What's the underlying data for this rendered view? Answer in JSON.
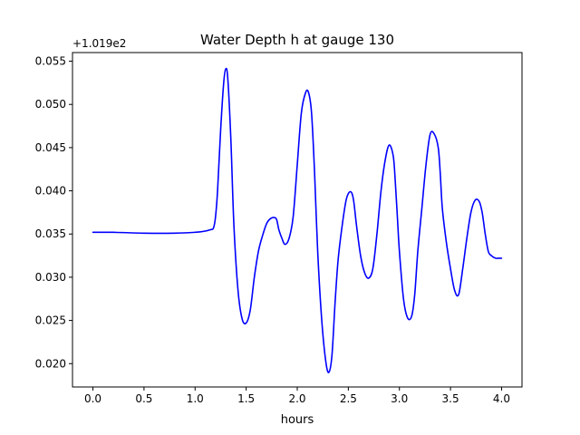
{
  "chart_data": {
    "type": "line",
    "title": "Water Depth h at gauge 130",
    "xlabel": "hours",
    "ylabel": "",
    "offset_text": "+1.019e2",
    "xlim": [
      -0.2,
      4.2
    ],
    "ylim": [
      0.0173,
      0.056
    ],
    "xticks": [
      0.0,
      0.5,
      1.0,
      1.5,
      2.0,
      2.5,
      3.0,
      3.5,
      4.0
    ],
    "xtick_labels": [
      "0.0",
      "0.5",
      "1.0",
      "1.5",
      "2.0",
      "2.5",
      "3.0",
      "3.5",
      "4.0"
    ],
    "yticks": [
      0.02,
      0.025,
      0.03,
      0.035,
      0.04,
      0.045,
      0.05,
      0.055
    ],
    "ytick_labels": [
      "0.020",
      "0.025",
      "0.030",
      "0.035",
      "0.040",
      "0.045",
      "0.050",
      "0.055"
    ],
    "grid": false,
    "series": [
      {
        "color": "#0000ff",
        "x": [
          0.0,
          0.2,
          0.5,
          0.8,
          1.0,
          1.08,
          1.15,
          1.18,
          1.2,
          1.22,
          1.25,
          1.28,
          1.3,
          1.32,
          1.35,
          1.38,
          1.42,
          1.46,
          1.5,
          1.54,
          1.58,
          1.62,
          1.66,
          1.7,
          1.74,
          1.78,
          1.8,
          1.82,
          1.85,
          1.88,
          1.92,
          1.96,
          2.0,
          2.04,
          2.08,
          2.11,
          2.14,
          2.17,
          2.2,
          2.24,
          2.28,
          2.31,
          2.34,
          2.37,
          2.4,
          2.44,
          2.48,
          2.52,
          2.55,
          2.58,
          2.62,
          2.66,
          2.7,
          2.74,
          2.78,
          2.82,
          2.86,
          2.9,
          2.94,
          2.96,
          2.98,
          3.0,
          3.04,
          3.08,
          3.12,
          3.15,
          3.18,
          3.22,
          3.26,
          3.3,
          3.34,
          3.38,
          3.4,
          3.42,
          3.46,
          3.5,
          3.54,
          3.58,
          3.62,
          3.66,
          3.7,
          3.74,
          3.78,
          3.81,
          3.84,
          3.87,
          3.9,
          3.94,
          3.97,
          4.0
        ],
        "y": [
          0.0352,
          0.0352,
          0.0351,
          0.0351,
          0.0352,
          0.0353,
          0.0355,
          0.0357,
          0.037,
          0.04,
          0.047,
          0.0525,
          0.0541,
          0.053,
          0.046,
          0.036,
          0.0285,
          0.0252,
          0.0247,
          0.0262,
          0.03,
          0.033,
          0.0348,
          0.0362,
          0.0368,
          0.0369,
          0.0366,
          0.0355,
          0.0345,
          0.0338,
          0.0345,
          0.037,
          0.043,
          0.049,
          0.0513,
          0.0514,
          0.049,
          0.042,
          0.033,
          0.025,
          0.0202,
          0.019,
          0.021,
          0.027,
          0.032,
          0.036,
          0.039,
          0.0399,
          0.039,
          0.036,
          0.0325,
          0.0305,
          0.0299,
          0.031,
          0.035,
          0.04,
          0.0435,
          0.0453,
          0.044,
          0.041,
          0.037,
          0.033,
          0.0275,
          0.0253,
          0.0255,
          0.028,
          0.033,
          0.038,
          0.043,
          0.0465,
          0.0466,
          0.045,
          0.042,
          0.038,
          0.034,
          0.031,
          0.0285,
          0.028,
          0.031,
          0.0345,
          0.0375,
          0.0389,
          0.0388,
          0.0375,
          0.035,
          0.033,
          0.0325,
          0.0322,
          0.0322,
          0.0322
        ]
      }
    ]
  }
}
